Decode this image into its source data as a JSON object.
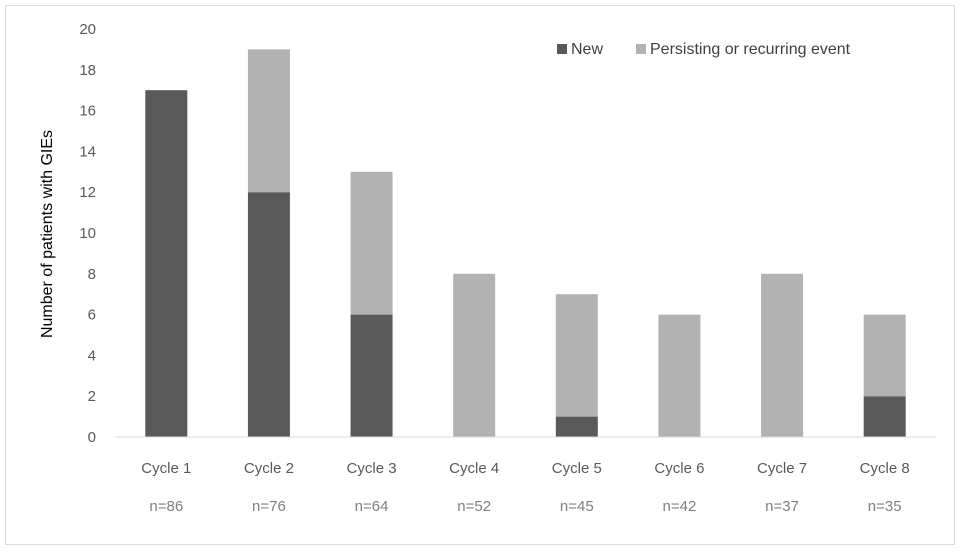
{
  "chart_data": {
    "type": "bar",
    "stacked": true,
    "title": "",
    "xlabel": "",
    "ylabel": "Number of patients with GIEs",
    "ylim": [
      0,
      20
    ],
    "ytick_step": 2,
    "grid": false,
    "legend_position": "top-right",
    "categories": [
      "Cycle 1",
      "Cycle 2",
      "Cycle 3",
      "Cycle 4",
      "Cycle 5",
      "Cycle 6",
      "Cycle 7",
      "Cycle 8"
    ],
    "sample_sizes": [
      "n=86",
      "n=76",
      "n=64",
      "n=52",
      "n=45",
      "n=42",
      "n=37",
      "n=35"
    ],
    "series": [
      {
        "name": "New",
        "color": "#595959",
        "values": [
          17,
          12,
          6,
          0,
          1,
          0,
          0,
          2
        ]
      },
      {
        "name": "Persisting or recurring event",
        "color": "#b2b2b2",
        "values": [
          0,
          7,
          7,
          8,
          6,
          6,
          8,
          4
        ]
      }
    ]
  }
}
